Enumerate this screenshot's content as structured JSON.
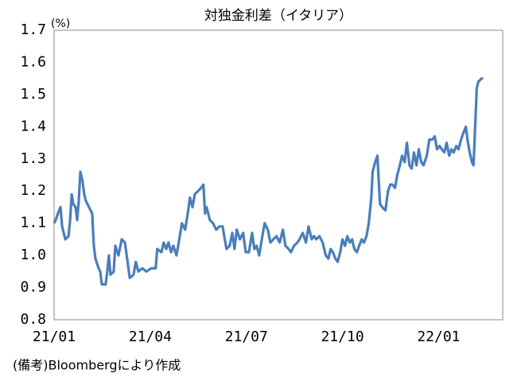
{
  "chart_data": {
    "type": "line",
    "title": "対独金利差（イタリア）",
    "y_unit": "(%)",
    "note": "(備考)Bloombergにより作成",
    "xlim": [
      0,
      14
    ],
    "xticks": [
      {
        "value": 0,
        "label": "21/01"
      },
      {
        "value": 3,
        "label": "21/04"
      },
      {
        "value": 6,
        "label": "21/07"
      },
      {
        "value": 9,
        "label": "21/10"
      },
      {
        "value": 12,
        "label": "22/01"
      }
    ],
    "ylim": [
      0.8,
      1.7
    ],
    "yticks": [
      0.8,
      0.9,
      {
        "value": 1,
        "label": "1.0"
      },
      1.1,
      1.2,
      1.3,
      1.4,
      1.5,
      1.6,
      1.7
    ],
    "grid": false,
    "series": [
      {
        "color": "#4a7ebb",
        "x": [
          0,
          0.05,
          0.12,
          0.2,
          0.25,
          0.3,
          0.35,
          0.45,
          0.5,
          0.55,
          0.6,
          0.67,
          0.72,
          0.77,
          0.82,
          0.89,
          0.94,
          0.99,
          1.09,
          1.19,
          1.24,
          1.29,
          1.39,
          1.44,
          1.49,
          1.61,
          1.66,
          1.71,
          1.76,
          1.86,
          1.91,
          2.01,
          2.11,
          2.21,
          2.28,
          2.36,
          2.48,
          2.55,
          2.63,
          2.75,
          2.88,
          3.03,
          3.17,
          3.22,
          3.35,
          3.42,
          3.5,
          3.57,
          3.65,
          3.72,
          3.82,
          3.89,
          3.99,
          4.09,
          4.17,
          4.24,
          4.32,
          4.39,
          4.49,
          4.59,
          4.66,
          4.71,
          4.76,
          4.86,
          4.96,
          5.06,
          5.16,
          5.26,
          5.31,
          5.38,
          5.48,
          5.56,
          5.63,
          5.7,
          5.8,
          5.9,
          5.98,
          6.08,
          6.18,
          6.25,
          6.32,
          6.4,
          6.5,
          6.57,
          6.67,
          6.75,
          6.84,
          6.94,
          7.04,
          7.14,
          7.22,
          7.32,
          7.39,
          7.49,
          7.59,
          7.66,
          7.76,
          7.86,
          7.94,
          8.04,
          8.11,
          8.18,
          8.28,
          8.38,
          8.48,
          8.56,
          8.63,
          8.7,
          8.78,
          8.85,
          8.93,
          9.0,
          9.08,
          9.15,
          9.23,
          9.3,
          9.37,
          9.45,
          9.52,
          9.6,
          9.67,
          9.75,
          9.82,
          9.9,
          9.94,
          10.02,
          10.09,
          10.17,
          10.24,
          10.34,
          10.42,
          10.49,
          10.56,
          10.64,
          10.71,
          10.79,
          10.86,
          10.94,
          11.01,
          11.09,
          11.16,
          11.23,
          11.31,
          11.38,
          11.46,
          11.53,
          11.63,
          11.71,
          11.8,
          11.88,
          11.95,
          12.03,
          12.1,
          12.18,
          12.25,
          12.33,
          12.4,
          12.47,
          12.55,
          12.62,
          12.7,
          12.77,
          12.85,
          12.9,
          12.97,
          13.04,
          13.09,
          13.14,
          13.19,
          13.24,
          13.34,
          13.39
        ],
        "values": [
          1.1,
          1.11,
          1.13,
          1.15,
          1.09,
          1.07,
          1.05,
          1.06,
          1.11,
          1.19,
          1.16,
          1.15,
          1.11,
          1.17,
          1.26,
          1.23,
          1.19,
          1.17,
          1.15,
          1.13,
          1.03,
          0.99,
          0.96,
          0.95,
          0.91,
          0.91,
          0.95,
          1.0,
          0.94,
          0.95,
          1.03,
          1.0,
          1.05,
          1.04,
          0.99,
          0.93,
          0.94,
          0.98,
          0.95,
          0.96,
          0.95,
          0.96,
          0.96,
          1.02,
          1.01,
          1.04,
          1.02,
          1.04,
          1.01,
          1.03,
          1.0,
          1.04,
          1.1,
          1.08,
          1.13,
          1.18,
          1.15,
          1.19,
          1.2,
          1.21,
          1.22,
          1.13,
          1.15,
          1.11,
          1.1,
          1.08,
          1.09,
          1.09,
          1.06,
          1.02,
          1.03,
          1.07,
          1.02,
          1.08,
          1.05,
          1.07,
          1.01,
          1.01,
          1.07,
          1.02,
          1.03,
          1.0,
          1.06,
          1.1,
          1.08,
          1.04,
          1.05,
          1.06,
          1.04,
          1.08,
          1.03,
          1.02,
          1.01,
          1.03,
          1.04,
          1.05,
          1.07,
          1.04,
          1.09,
          1.05,
          1.06,
          1.05,
          1.06,
          1.04,
          1.0,
          0.99,
          1.02,
          1.01,
          0.99,
          0.98,
          1.01,
          1.05,
          1.03,
          1.06,
          1.04,
          1.05,
          1.02,
          1.01,
          1.03,
          1.05,
          1.04,
          1.06,
          1.1,
          1.18,
          1.26,
          1.29,
          1.31,
          1.16,
          1.15,
          1.14,
          1.2,
          1.22,
          1.22,
          1.21,
          1.25,
          1.28,
          1.31,
          1.29,
          1.35,
          1.28,
          1.27,
          1.32,
          1.28,
          1.33,
          1.29,
          1.28,
          1.31,
          1.36,
          1.36,
          1.37,
          1.33,
          1.34,
          1.33,
          1.32,
          1.35,
          1.31,
          1.33,
          1.32,
          1.34,
          1.33,
          1.36,
          1.38,
          1.4,
          1.36,
          1.32,
          1.29,
          1.28,
          1.4,
          1.52,
          1.54,
          1.55,
          1.55
        ]
      }
    ]
  }
}
